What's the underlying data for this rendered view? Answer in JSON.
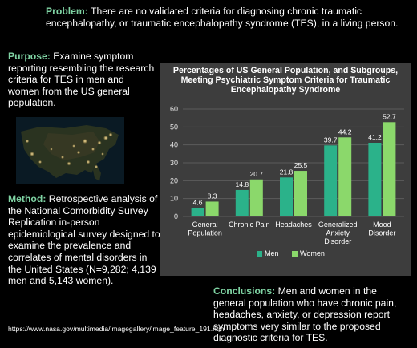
{
  "problem": {
    "heading": "Problem:",
    "text": " There are no validated criteria for diagnosing chronic traumatic encephalopathy, or traumatic encephalopathy syndrome (TES), in a living person."
  },
  "purpose": {
    "heading": "Purpose:",
    "text": " Examine symptom reporting resembling the research criteria for TES in men and women from the US general population."
  },
  "method": {
    "heading": "Method:",
    "text": " Retrospective analysis of the National Comorbidity Survey Replication in-person epidemiological survey designed to examine the prevalence and correlates of mental disorders in the United States (N=9,282; 4,139 men and 5,143 women)."
  },
  "conclusions": {
    "heading": "Conclusions:",
    "text": " Men and women in the general population who have chronic pain, headaches, anxiety, or depression report symptoms very similar to the proposed diagnostic criteria for TES."
  },
  "image_credit": "https://www.nasa.gov/multimedia/imagegallery/image_feature_191.html",
  "colors": {
    "accent_text": "#7fd3a3",
    "men": "#2bb28a",
    "women": "#8bd86b",
    "chart_bg": "#3d3d3d",
    "background": "#000000"
  },
  "chart_data": {
    "type": "bar",
    "title": "Percentages of US General Population, and Subgroups, Meeting Psychiatric Symptom Criteria for Traumatic Encephalopathy Syndrome",
    "categories": [
      [
        "General",
        "Population"
      ],
      [
        "Chronic Pain"
      ],
      [
        "Headaches"
      ],
      [
        "Generalized",
        "Anxiety",
        "Disorder"
      ],
      [
        "Mood",
        "Disorder"
      ]
    ],
    "series": [
      {
        "name": "Men",
        "values": [
          4.6,
          14.8,
          21.8,
          39.7,
          41.2
        ]
      },
      {
        "name": "Women",
        "values": [
          8.3,
          20.7,
          25.5,
          44.2,
          52.7
        ]
      }
    ],
    "ylim": [
      0,
      60
    ],
    "yticks": [
      0,
      10,
      20,
      30,
      40,
      50,
      60
    ],
    "grid": true,
    "legend": "bottom"
  }
}
